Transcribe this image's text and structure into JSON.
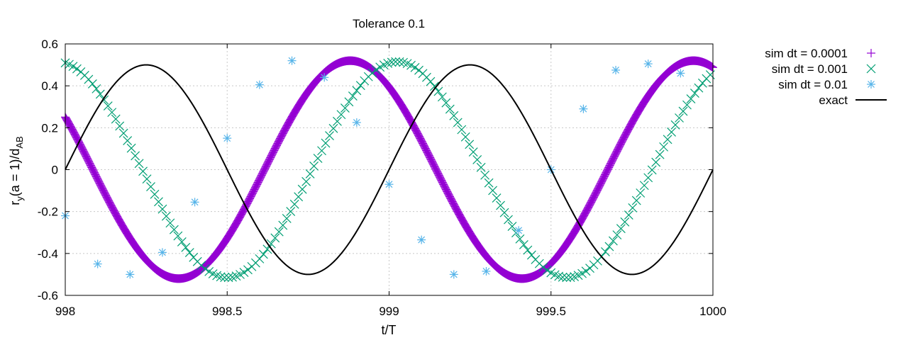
{
  "chart_data": {
    "type": "scatter",
    "title": "Tolerance 0.1",
    "xlabel": "t/T",
    "ylabel_main": "r",
    "ylabel_sub1": "y",
    "ylabel_mid": "(a = 1)/d",
    "ylabel_sub2": "AB",
    "xlim": [
      998,
      1000
    ],
    "ylim": [
      -0.6,
      0.6
    ],
    "xticks": [
      "998",
      "998.5",
      "999",
      "999.5",
      "1000"
    ],
    "xtick_values": [
      998,
      998.5,
      999,
      999.5,
      1000
    ],
    "yticks": [
      "0.6",
      "0.4",
      "0.2",
      "0",
      "-0.2",
      "-0.4",
      "-0.6"
    ],
    "ytick_values": [
      0.6,
      0.4,
      0.2,
      0,
      -0.2,
      -0.4,
      -0.6
    ],
    "grid": true,
    "legend_position": "outside-right",
    "series": [
      {
        "name": "sim dt = 0.0001",
        "marker": "plus",
        "color": "#9400d3",
        "amplitude": 0.52,
        "period": 1.06,
        "phase_time": 998.35,
        "x_start": 998.0,
        "x_end": 1000.0,
        "x_step": 0.0016
      },
      {
        "name": "sim dt = 0.001",
        "marker": "cross",
        "color": "#009e73",
        "amplitude": 0.515,
        "period": 1.05,
        "phase_time": 998.5,
        "x_start": 998.0,
        "x_end": 1000.0,
        "x_step": 0.012
      },
      {
        "name": "sim dt = 0.01",
        "marker": "star",
        "color": "#56b4e9",
        "x": [
          998.0,
          998.1,
          998.2,
          998.3,
          998.4,
          998.5,
          998.6,
          998.7,
          998.8,
          998.9,
          999.0,
          999.1,
          999.2,
          999.3,
          999.4,
          999.5,
          999.6,
          999.7,
          999.8,
          999.9
        ],
        "y": [
          -0.22,
          -0.45,
          -0.5,
          -0.395,
          -0.155,
          0.15,
          0.405,
          0.52,
          0.44,
          0.225,
          -0.07,
          -0.335,
          -0.5,
          -0.485,
          -0.29,
          0.0,
          0.29,
          0.475,
          0.505,
          0.46
        ]
      },
      {
        "name": "exact",
        "marker": "line",
        "color": "#000000",
        "amplitude": 0.5,
        "period": 1.0,
        "phase_time": 998.0
      }
    ]
  }
}
